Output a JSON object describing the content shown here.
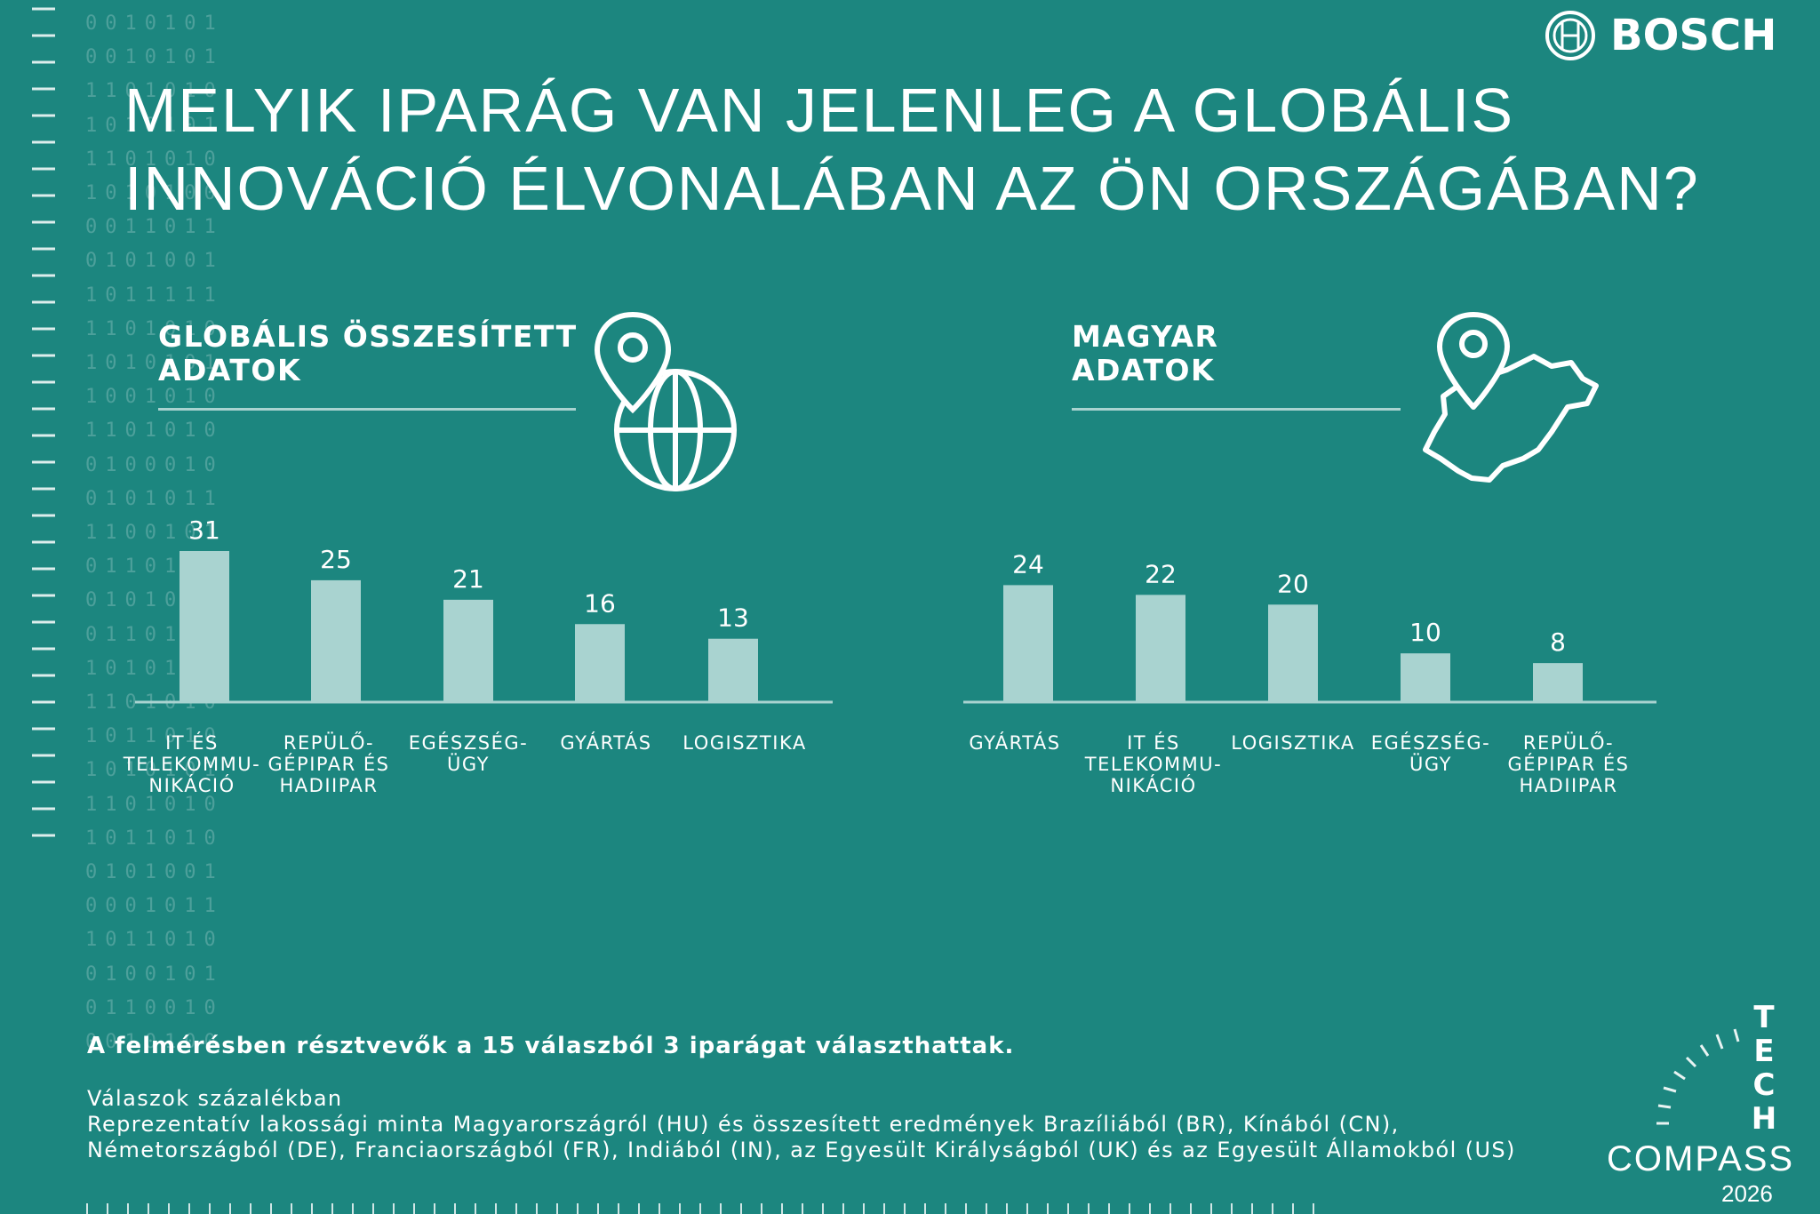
{
  "header": {
    "title_line1": "MELYIK IPARÁG VAN JELENLEG A GLOBÁLIS",
    "title_line2": "INNOVÁCIÓ ÉLVONALÁBAN AZ ÖN ORSZÁGÁBAN?",
    "brand": "BOSCH"
  },
  "decor": {
    "binary_rows": [
      "0010101",
      "0010101",
      "1101010",
      "1010101",
      "1101010",
      "1010100",
      "0011011",
      "0101001",
      "1011111",
      "1101010",
      "1010101",
      "1001010",
      "1101010",
      "0100010",
      "0101011",
      "1100101",
      "0110100",
      "0101010",
      "0110100",
      "1010101",
      "1101010",
      "1011010",
      "1010101",
      "1101010",
      "1011010",
      "0101001",
      "0001011",
      "1011010",
      "0100101",
      "0110010",
      "0010100"
    ],
    "accent_color": "#1c867f",
    "bar_color": "#a9d3d0"
  },
  "sections": {
    "global": {
      "heading_line1": "GLOBÁLIS ÖSSZESÍTETT",
      "heading_line2": "ADATOK",
      "icon": "globe-pin-icon"
    },
    "hungary": {
      "heading_line1": "MAGYAR",
      "heading_line2": "ADATOK",
      "icon": "hungary-map-pin-icon"
    }
  },
  "chart_data": [
    {
      "type": "bar",
      "title": "GLOBÁLIS ÖSSZESÍTETT ADATOK",
      "categories": [
        [
          "IT ÉS",
          "TELEKOMMU-",
          "NIKÁCIÓ"
        ],
        [
          "REPÜLŐ-",
          "GÉPIPAR ÉS",
          "HADIIPAR"
        ],
        [
          "EGÉSZSÉG-",
          "ÜGY"
        ],
        [
          "GYÁRTÁS"
        ],
        [
          "LOGISZTIKA"
        ]
      ],
      "values": [
        31,
        25,
        21,
        16,
        13
      ],
      "data_labels": [
        "31",
        "25",
        "21",
        "16",
        "13"
      ],
      "ylim": [
        0,
        31
      ],
      "grid": false
    },
    {
      "type": "bar",
      "title": "MAGYAR ADATOK",
      "categories": [
        [
          "GYÁRTÁS"
        ],
        [
          "IT ÉS",
          "TELEKOMMU-",
          "NIKÁCIÓ"
        ],
        [
          "LOGISZTIKA"
        ],
        [
          "EGÉSZSÉG-",
          "ÜGY"
        ],
        [
          "REPÜLŐ-",
          "GÉPIPAR ÉS",
          "HADIIPAR"
        ]
      ],
      "values": [
        24,
        22,
        20,
        10,
        8
      ],
      "data_labels": [
        "24",
        "22",
        "20",
        "10",
        "8"
      ],
      "ylim": [
        0,
        31
      ],
      "grid": false
    }
  ],
  "footer": {
    "note": "A felmérésben résztvevők a 15 válaszból 3 iparágat választhattak.",
    "line1": "Válaszok százalékban",
    "line2": "Reprezentatív lakossági minta Magyarországról (HU) és összesített eredmények Brazíliából (BR), Kínából (CN),",
    "line3": "Németországból (DE), Franciaországból (FR), Indiából (IN), az Egyesült Királyságból (UK) és az Egyesült Államokból (US)"
  },
  "badge": {
    "letters": [
      "T",
      "E",
      "C",
      "H"
    ],
    "compass": "COMPASS",
    "year": "2026"
  }
}
